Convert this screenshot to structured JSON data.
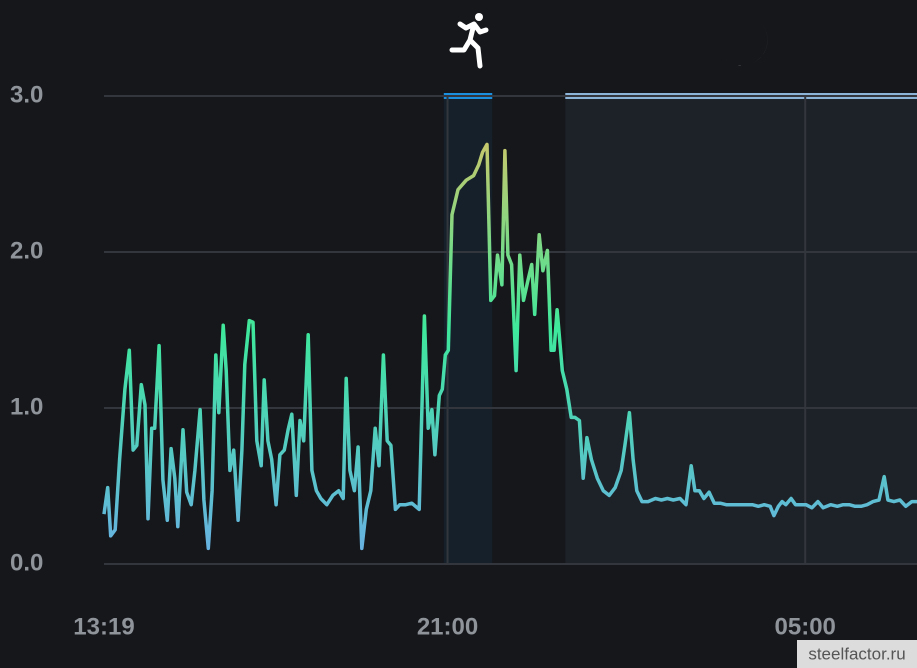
{
  "chart_data": {
    "type": "line",
    "x": [
      "13:19",
      "13:24",
      "13:28",
      "13:34",
      "13:40",
      "13:47",
      "13:53",
      "13:58",
      "14:03",
      "14:09",
      "14:14",
      "14:18",
      "14:23",
      "14:27",
      "14:33",
      "14:38",
      "14:44",
      "14:49",
      "14:54",
      "14:58",
      "15:05",
      "15:10",
      "15:16",
      "15:21",
      "15:28",
      "15:33",
      "15:39",
      "15:44",
      "15:49",
      "15:53",
      "15:59",
      "16:03",
      "16:08",
      "16:13",
      "16:19",
      "16:24",
      "16:28",
      "16:34",
      "16:39",
      "16:44",
      "16:50",
      "16:54",
      "16:59",
      "17:04",
      "17:10",
      "17:15",
      "17:21",
      "17:26",
      "17:31",
      "17:37",
      "17:42",
      "17:47",
      "17:53",
      "17:58",
      "18:04",
      "18:10",
      "18:18",
      "18:26",
      "18:34",
      "18:40",
      "18:44",
      "18:49",
      "18:55",
      "19:00",
      "19:05",
      "19:11",
      "19:17",
      "19:23",
      "19:28",
      "19:34",
      "19:39",
      "19:44",
      "19:50",
      "19:56",
      "20:04",
      "20:12",
      "20:22",
      "20:29",
      "20:34",
      "20:39",
      "20:43",
      "20:49",
      "20:53",
      "20:57",
      "21:01",
      "21:06",
      "21:14",
      "21:25",
      "21:35",
      "21:42",
      "21:47",
      "21:53",
      "21:58",
      "22:03",
      "22:07",
      "22:13",
      "22:17",
      "22:21",
      "22:26",
      "22:32",
      "22:37",
      "22:42",
      "22:48",
      "22:53",
      "22:57",
      "23:03",
      "23:08",
      "23:14",
      "23:19",
      "23:23",
      "23:27",
      "23:34",
      "23:40",
      "23:46",
      "23:51",
      "23:57",
      "00:02",
      "00:07",
      "00:13",
      "00:21",
      "00:29",
      "00:37",
      "00:45",
      "00:53",
      "00:58",
      "01:04",
      "01:09",
      "01:14",
      "01:21",
      "01:29",
      "01:39",
      "01:47",
      "01:55",
      "02:03",
      "02:12",
      "02:20",
      "02:27",
      "02:32",
      "02:38",
      "02:44",
      "02:51",
      "02:58",
      "03:06",
      "03:14",
      "03:23",
      "03:33",
      "03:41",
      "03:49",
      "03:57",
      "04:05",
      "04:13",
      "04:18",
      "04:24",
      "04:29",
      "04:34",
      "04:41",
      "04:47",
      "04:53",
      "05:01",
      "05:09",
      "05:17",
      "05:24",
      "05:34",
      "05:43",
      "05:51",
      "05:59",
      "06:07",
      "06:15",
      "06:23",
      "06:31",
      "06:39",
      "06:46",
      "06:51",
      "06:59",
      "07:07",
      "07:15",
      "07:23",
      "07:30"
    ],
    "values": [
      0.32,
      0.49,
      0.18,
      0.22,
      0.67,
      1.12,
      1.37,
      0.73,
      0.76,
      1.15,
      1.02,
      0.29,
      0.87,
      0.87,
      1.4,
      0.54,
      0.28,
      0.74,
      0.55,
      0.24,
      0.86,
      0.46,
      0.38,
      0.6,
      0.99,
      0.41,
      0.1,
      0.47,
      1.34,
      0.97,
      1.53,
      1.24,
      0.6,
      0.73,
      0.28,
      0.73,
      1.28,
      1.56,
      1.55,
      0.79,
      0.63,
      1.18,
      0.79,
      0.67,
      0.38,
      0.7,
      0.73,
      0.86,
      0.96,
      0.44,
      0.92,
      0.79,
      1.47,
      0.6,
      0.47,
      0.42,
      0.38,
      0.44,
      0.47,
      0.42,
      1.19,
      0.6,
      0.47,
      0.75,
      0.1,
      0.35,
      0.47,
      0.87,
      0.63,
      1.34,
      0.79,
      0.76,
      0.35,
      0.38,
      0.38,
      0.39,
      0.35,
      1.59,
      0.87,
      0.99,
      0.7,
      1.08,
      1.12,
      1.34,
      1.37,
      2.24,
      2.4,
      2.46,
      2.49,
      2.56,
      2.64,
      2.69,
      1.69,
      1.72,
      1.98,
      1.79,
      2.65,
      1.98,
      1.92,
      1.24,
      1.98,
      1.69,
      1.82,
      1.92,
      1.6,
      2.11,
      1.88,
      2.01,
      1.37,
      1.37,
      1.63,
      1.24,
      1.12,
      0.94,
      0.94,
      0.92,
      0.55,
      0.81,
      0.67,
      0.55,
      0.47,
      0.44,
      0.49,
      0.6,
      0.76,
      0.97,
      0.67,
      0.47,
      0.4,
      0.4,
      0.42,
      0.41,
      0.42,
      0.41,
      0.42,
      0.38,
      0.63,
      0.47,
      0.47,
      0.42,
      0.46,
      0.39,
      0.39,
      0.38,
      0.38,
      0.38,
      0.38,
      0.38,
      0.37,
      0.38,
      0.37,
      0.31,
      0.37,
      0.4,
      0.38,
      0.42,
      0.38,
      0.38,
      0.38,
      0.36,
      0.4,
      0.36,
      0.38,
      0.37,
      0.38,
      0.38,
      0.37,
      0.37,
      0.38,
      0.4,
      0.41,
      0.56,
      0.41,
      0.4,
      0.41,
      0.37,
      0.4,
      0.4
    ],
    "gradient": [
      "#6aaee6",
      "#3ee89c",
      "#e8c060"
    ],
    "xlim": [
      "13:19",
      "07:30"
    ],
    "xticks": [
      "13:19",
      "21:00",
      "05:00"
    ],
    "ylim": [
      0,
      3
    ],
    "yticks": [
      {
        "value": 0,
        "label": "0.0"
      },
      {
        "value": 1,
        "label": "1.0"
      },
      {
        "value": 2,
        "label": "2.0"
      },
      {
        "value": 3,
        "label": "3.0"
      }
    ],
    "bands": [
      {
        "start": "20:55",
        "end": "22:00",
        "color": "#1a8fe0"
      },
      {
        "start": "23:38",
        "end": "07:30",
        "color": "#8cb4d8"
      }
    ],
    "grid": true
  },
  "watermark": "steelfactor.ru"
}
